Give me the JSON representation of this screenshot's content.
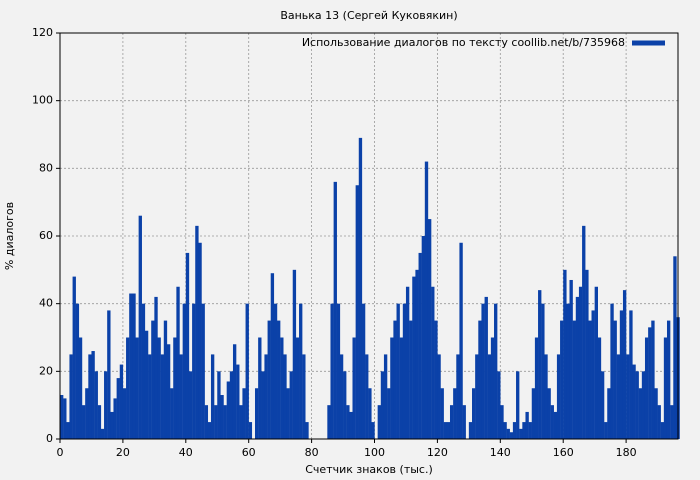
{
  "chart_data": {
    "type": "bar",
    "title": "Ванька 13 (Сергей Куковякин)",
    "x_label": "Счетчик знаков (тыс.)",
    "y_label": "% диалогов",
    "x": [
      0,
      1,
      2,
      3,
      4,
      5,
      6,
      7,
      8,
      9,
      10,
      11,
      12,
      13,
      14,
      15,
      16,
      17,
      18,
      19,
      20,
      21,
      22,
      23,
      24,
      25,
      26,
      27,
      28,
      29,
      30,
      31,
      32,
      33,
      34,
      35,
      36,
      37,
      38,
      39,
      40,
      41,
      42,
      43,
      44,
      45,
      46,
      47,
      48,
      49,
      50,
      51,
      52,
      53,
      54,
      55,
      56,
      57,
      58,
      59,
      60,
      61,
      62,
      63,
      64,
      65,
      66,
      67,
      68,
      69,
      70,
      71,
      72,
      73,
      74,
      75,
      76,
      77,
      78,
      79,
      80,
      81,
      82,
      83,
      84,
      85,
      86,
      87,
      88,
      89,
      90,
      91,
      92,
      93,
      94,
      95,
      96,
      97,
      98,
      99,
      100,
      101,
      102,
      103,
      104,
      105,
      106,
      107,
      108,
      109,
      110,
      111,
      112,
      113,
      114,
      115,
      116,
      117,
      118,
      119,
      120,
      121,
      122,
      123,
      124,
      125,
      126,
      127,
      128,
      129,
      130,
      131,
      132,
      133,
      134,
      135,
      136,
      137,
      138,
      139,
      140,
      141,
      142,
      143,
      144,
      145,
      146,
      147,
      148,
      149,
      150,
      151,
      152,
      153,
      154,
      155,
      156,
      157,
      158,
      159,
      160,
      161,
      162,
      163,
      164,
      165,
      166,
      167,
      168,
      169,
      170,
      171,
      172,
      173,
      174,
      175,
      176,
      177,
      178,
      179,
      180,
      181,
      182,
      183,
      184,
      185,
      186,
      187,
      188,
      189,
      190,
      191,
      192,
      193,
      194,
      195,
      196
    ],
    "series": [
      {
        "name": "Использование диалогов по тексту coollib.net/b/735968",
        "color": "#0b41a8",
        "values": [
          13,
          12,
          5,
          25,
          48,
          40,
          30,
          10,
          15,
          25,
          26,
          20,
          10,
          3,
          20,
          38,
          8,
          12,
          18,
          22,
          15,
          30,
          43,
          43,
          30,
          66,
          40,
          32,
          25,
          35,
          42,
          30,
          25,
          35,
          28,
          15,
          30,
          45,
          25,
          40,
          55,
          20,
          40,
          63,
          58,
          40,
          10,
          5,
          25,
          10,
          20,
          13,
          10,
          17,
          20,
          28,
          22,
          10,
          15,
          40,
          5,
          0,
          15,
          30,
          20,
          25,
          35,
          49,
          40,
          35,
          30,
          25,
          15,
          20,
          50,
          30,
          40,
          25,
          5,
          0,
          0,
          0,
          0,
          0,
          0,
          10,
          40,
          76,
          40,
          25,
          20,
          10,
          8,
          30,
          75,
          89,
          40,
          25,
          15,
          5,
          0,
          10,
          20,
          25,
          15,
          30,
          35,
          40,
          30,
          40,
          45,
          35,
          48,
          50,
          55,
          60,
          82,
          65,
          45,
          35,
          25,
          15,
          5,
          5,
          10,
          15,
          25,
          58,
          10,
          0,
          5,
          15,
          25,
          35,
          40,
          42,
          25,
          30,
          40,
          20,
          10,
          5,
          3,
          2,
          5,
          20,
          3,
          5,
          8,
          5,
          15,
          30,
          44,
          40,
          25,
          15,
          10,
          8,
          25,
          35,
          50,
          40,
          47,
          35,
          42,
          45,
          63,
          50,
          35,
          38,
          45,
          30,
          20,
          5,
          15,
          40,
          35,
          25,
          38,
          44,
          25,
          38,
          22,
          20,
          15,
          20,
          30,
          33,
          35,
          15,
          10,
          5,
          30,
          35,
          10,
          54,
          36
        ]
      }
    ],
    "xlim": [
      0,
      196.5
    ],
    "ylim": [
      0,
      120
    ],
    "xticks": [
      0,
      20,
      40,
      60,
      80,
      100,
      120,
      140,
      160,
      180
    ],
    "yticks": [
      0,
      20,
      40,
      60,
      80,
      100,
      120
    ],
    "grid": true,
    "legend": "upper right"
  }
}
